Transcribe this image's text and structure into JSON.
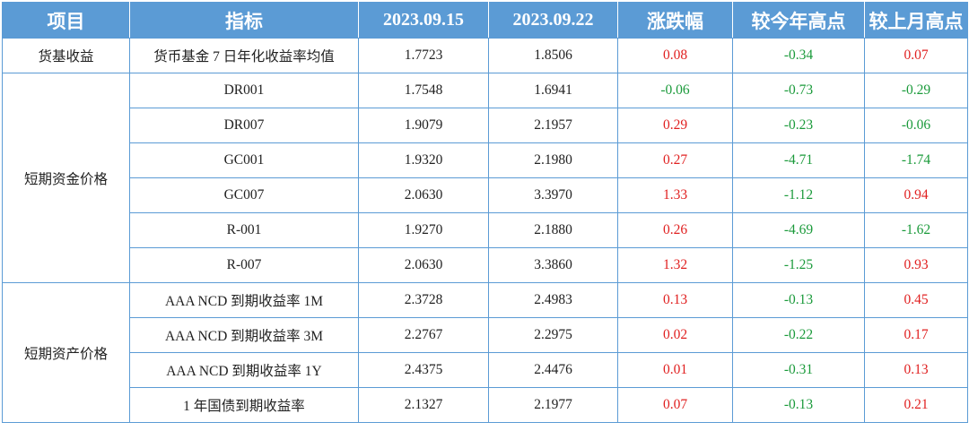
{
  "columns": [
    "项目",
    "指标",
    "2023.09.15",
    "2023.09.22",
    "涨跌幅",
    "较今年高点",
    "较上月高点"
  ],
  "groups": [
    {
      "category": "货基收益",
      "rows": [
        {
          "indicator": "货币基金 7 日年化收益率均值",
          "v1": "1.7723",
          "v2": "1.8506",
          "chg": "0.08",
          "vs_year_high": "-0.34",
          "vs_month_high": "0.07"
        }
      ]
    },
    {
      "category": "短期资金价格",
      "rows": [
        {
          "indicator": "DR001",
          "v1": "1.7548",
          "v2": "1.6941",
          "chg": "-0.06",
          "vs_year_high": "-0.73",
          "vs_month_high": "-0.29"
        },
        {
          "indicator": "DR007",
          "v1": "1.9079",
          "v2": "2.1957",
          "chg": "0.29",
          "vs_year_high": "-0.23",
          "vs_month_high": "-0.06"
        },
        {
          "indicator": "GC001",
          "v1": "1.9320",
          "v2": "2.1980",
          "chg": "0.27",
          "vs_year_high": "-4.71",
          "vs_month_high": "-1.74"
        },
        {
          "indicator": "GC007",
          "v1": "2.0630",
          "v2": "3.3970",
          "chg": "1.33",
          "vs_year_high": "-1.12",
          "vs_month_high": "0.94"
        },
        {
          "indicator": "R-001",
          "v1": "1.9270",
          "v2": "2.1880",
          "chg": "0.26",
          "vs_year_high": "-4.69",
          "vs_month_high": "-1.62"
        },
        {
          "indicator": "R-007",
          "v1": "2.0630",
          "v2": "3.3860",
          "chg": "1.32",
          "vs_year_high": "-1.25",
          "vs_month_high": "0.93"
        }
      ]
    },
    {
      "category": "短期资产价格",
      "rows": [
        {
          "indicator": "AAA NCD 到期收益率 1M",
          "v1": "2.3728",
          "v2": "2.4983",
          "chg": "0.13",
          "vs_year_high": "-0.13",
          "vs_month_high": "0.45"
        },
        {
          "indicator": "AAA NCD 到期收益率 3M",
          "v1": "2.2767",
          "v2": "2.2975",
          "chg": "0.02",
          "vs_year_high": "-0.22",
          "vs_month_high": "0.17"
        },
        {
          "indicator": "AAA NCD 到期收益率 1Y",
          "v1": "2.4375",
          "v2": "2.4476",
          "chg": "0.01",
          "vs_year_high": "-0.31",
          "vs_month_high": "0.13"
        },
        {
          "indicator": "1 年国债到期收益率",
          "v1": "2.1327",
          "v2": "2.1977",
          "chg": "0.07",
          "vs_year_high": "-0.13",
          "vs_month_high": "0.21"
        }
      ]
    }
  ],
  "colors": {
    "header_bg": "#5b9bd5",
    "header_text": "#ffffff",
    "border": "#5b9bd5",
    "positive": "#e02020",
    "negative": "#1a9a3a"
  }
}
